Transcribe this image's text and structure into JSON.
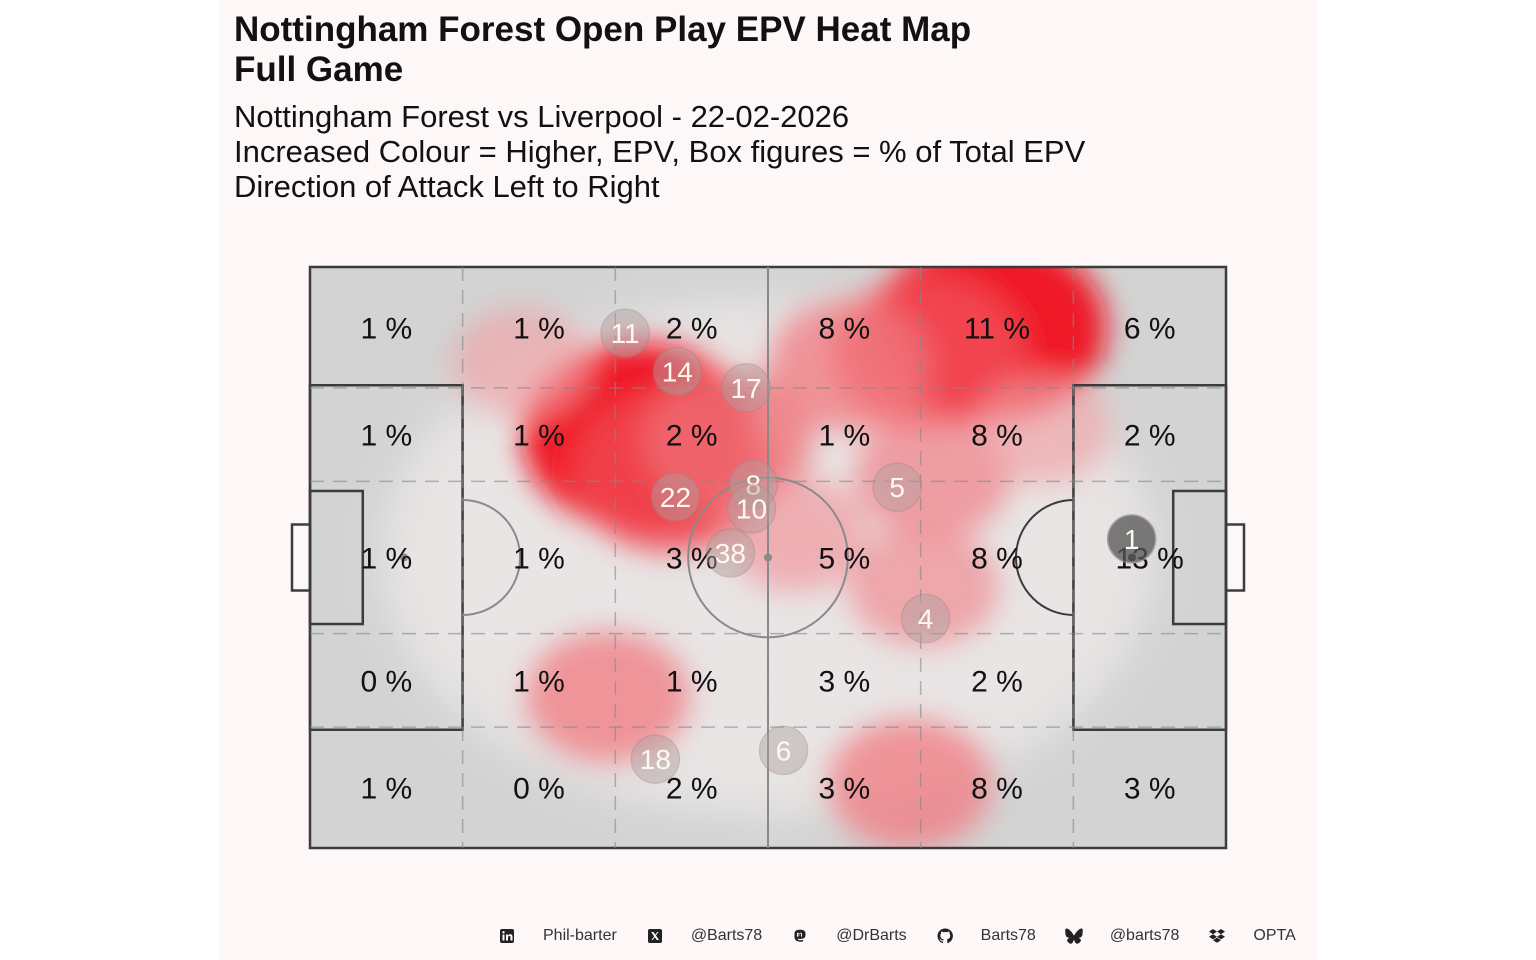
{
  "title": {
    "line1": "Nottingham Forest Open Play EPV Heat Map",
    "line2": "Full Game"
  },
  "subtitle": {
    "line1": "Nottingham Forest vs Liverpool - 22-02-2026",
    "line2": "Increased Colour = Higher, EPV, Box figures = % of Total EPV",
    "line3": "Direction of Attack Left to Right"
  },
  "colors": {
    "panel_background": "#fdf7f7",
    "pitch_fill": "#d3d3d3",
    "pitch_lines": "#3c3c3c",
    "heat_low": "#f0e0e0",
    "heat_high": "#f0101e",
    "player_circle": "#b0a0a0",
    "goalkeeper_circle": "#555555"
  },
  "chart_data": {
    "type": "heatmap",
    "zone_columns": 6,
    "zone_rows": 5,
    "zone_percentages_label_suffix": " %",
    "zones": [
      [
        1,
        1,
        2,
        8,
        11,
        6
      ],
      [
        1,
        1,
        2,
        1,
        8,
        2
      ],
      [
        1,
        1,
        3,
        5,
        8,
        13
      ],
      [
        0,
        1,
        1,
        3,
        2,
        null
      ],
      [
        1,
        0,
        2,
        3,
        8,
        3
      ]
    ],
    "player_average_positions": [
      {
        "number": "11",
        "x": 34.4,
        "y": 88.6
      },
      {
        "number": "14",
        "x": 40.1,
        "y": 82.0
      },
      {
        "number": "17",
        "x": 47.6,
        "y": 79.2
      },
      {
        "number": "8",
        "x": 48.4,
        "y": 62.6
      },
      {
        "number": "22",
        "x": 39.9,
        "y": 60.4
      },
      {
        "number": "10",
        "x": 48.2,
        "y": 58.4
      },
      {
        "number": "38",
        "x": 45.9,
        "y": 50.8
      },
      {
        "number": "5",
        "x": 64.1,
        "y": 62.1
      },
      {
        "number": "4",
        "x": 67.2,
        "y": 39.5
      },
      {
        "number": "18",
        "x": 37.7,
        "y": 15.3
      },
      {
        "number": "6",
        "x": 51.7,
        "y": 16.8
      },
      {
        "number": "1",
        "x": 89.7,
        "y": 53.2,
        "goalkeeper": true
      }
    ],
    "epv_hotspots": [
      {
        "x": 35.8,
        "y": 71.0,
        "intensity": 1.0
      },
      {
        "x": 39.5,
        "y": 64.5,
        "intensity": 0.75
      },
      {
        "x": 45.6,
        "y": 70.1,
        "intensity": 0.55
      },
      {
        "x": 74.3,
        "y": 89.5,
        "intensity": 1.0
      },
      {
        "x": 67.5,
        "y": 85.2,
        "intensity": 0.7
      },
      {
        "x": 59.0,
        "y": 83.0,
        "intensity": 0.5
      },
      {
        "x": 68.0,
        "y": 64.0,
        "intensity": 0.45
      },
      {
        "x": 67.0,
        "y": 45.0,
        "intensity": 0.4
      },
      {
        "x": 32.5,
        "y": 26.0,
        "intensity": 0.5
      },
      {
        "x": 65.5,
        "y": 11.0,
        "intensity": 0.5
      },
      {
        "x": 53.0,
        "y": 54.0,
        "intensity": 0.35
      },
      {
        "x": 23.0,
        "y": 83.5,
        "intensity": 0.3
      },
      {
        "x": 80.0,
        "y": 72.0,
        "intensity": 0.3
      }
    ],
    "xlim": [
      0,
      100
    ],
    "ylim": [
      0,
      100
    ],
    "attack_direction": "left-to-right"
  },
  "caption": {
    "linkedin_icon": "linkedin-icon",
    "linkedin": "Phil-barter",
    "x_icon": "x-icon",
    "x": "@Barts78",
    "mastodon_icon": "mastodon-icon",
    "mastodon": "@DrBarts",
    "github_icon": "github-icon",
    "github": "Barts78",
    "bluesky_icon": "bluesky-icon",
    "bluesky": "@barts78",
    "dropbox_icon": "dropbox-icon",
    "source": "OPTA"
  }
}
